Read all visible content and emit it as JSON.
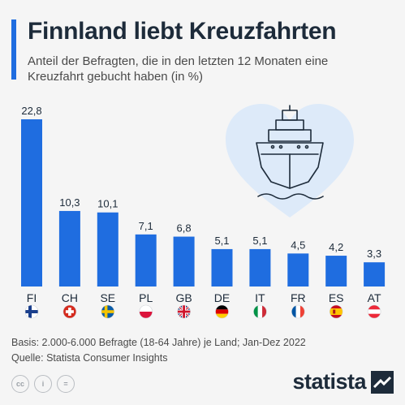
{
  "header": {
    "title": "Finnland liebt Kreuzfahrten",
    "subtitle": "Anteil der Befragten, die in den letzten 12 Monaten eine Kreuzfahrt gebucht haben (in %)"
  },
  "colors": {
    "accent": "#1f6de0",
    "bar": "#1f6de0",
    "heart": "#ddeaf9",
    "text": "#1d2b3a"
  },
  "chart_data": {
    "type": "bar",
    "title": "Finnland liebt Kreuzfahrten",
    "subtitle": "Anteil der Befragten, die in den letzten 12 Monaten eine Kreuzfahrt gebucht haben (in %)",
    "categories": [
      "FI",
      "CH",
      "SE",
      "PL",
      "GB",
      "DE",
      "IT",
      "FR",
      "ES",
      "AT"
    ],
    "values": [
      22.8,
      10.3,
      10.1,
      7.1,
      6.8,
      5.1,
      5.1,
      4.5,
      4.2,
      3.3
    ],
    "value_labels": [
      "22,8",
      "10,3",
      "10,1",
      "7,1",
      "6,8",
      "5,1",
      "5,1",
      "4,5",
      "4,2",
      "3,3"
    ],
    "ylim": [
      0,
      22.8
    ],
    "grid": false,
    "flag_icons": [
      "flag-finland-icon",
      "flag-switzerland-icon",
      "flag-sweden-icon",
      "flag-poland-icon",
      "flag-uk-icon",
      "flag-germany-icon",
      "flag-italy-icon",
      "flag-france-icon",
      "flag-spain-icon",
      "flag-austria-icon"
    ],
    "illustration_icon": "cruise-ship-heart-icon"
  },
  "footer": {
    "basis": "Basis: 2.000-6.000 Befragte (18-64 Jahre) je Land; Jan-Dez 2022",
    "source": "Quelle: Statista Consumer Insights",
    "license_icons": [
      "cc-icon",
      "by-icon",
      "nd-icon"
    ],
    "license_labels": [
      "cc",
      "i",
      "="
    ],
    "brand": "statista",
    "brand_icon": "statista-logo-icon"
  }
}
